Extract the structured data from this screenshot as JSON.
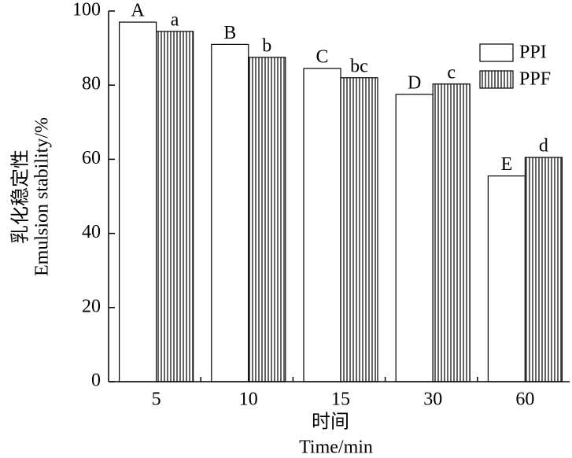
{
  "chart_data": {
    "type": "bar",
    "x_label": [
      "时间",
      "Time/min"
    ],
    "y_label": [
      "乳化稳定性",
      "Emulsion stability/%"
    ],
    "categories": [
      "5",
      "10",
      "15",
      "30",
      "60"
    ],
    "series": [
      {
        "name": "PPI",
        "color": "#ffffff",
        "pattern": "none",
        "values": [
          97,
          91,
          84.5,
          77.5,
          55.5
        ],
        "letters": [
          "A",
          "B",
          "C",
          "D",
          "E"
        ]
      },
      {
        "name": "PPF",
        "color": "#000000",
        "pattern": "vertical-stripes",
        "values": [
          94.5,
          87.5,
          82,
          80.3,
          60.5
        ],
        "letters": [
          "a",
          "b",
          "bc",
          "c",
          "d"
        ]
      }
    ],
    "ylim": [
      0,
      100
    ],
    "yticks": [
      0,
      20,
      40,
      60,
      80,
      100
    ],
    "legend": "upper right"
  }
}
